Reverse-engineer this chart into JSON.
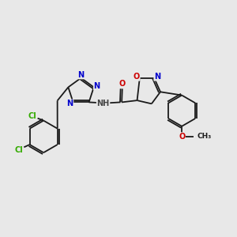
{
  "background_color": "#e8e8e8",
  "bond_color": "#1a1a1a",
  "N_color": "#0000cc",
  "O_color": "#cc0000",
  "Cl_color": "#33aa00",
  "H_color": "#444444",
  "figsize": [
    3.0,
    3.0
  ],
  "dpi": 100,
  "xlim": [
    0.5,
    9.5
  ],
  "ylim": [
    1.5,
    9.0
  ]
}
